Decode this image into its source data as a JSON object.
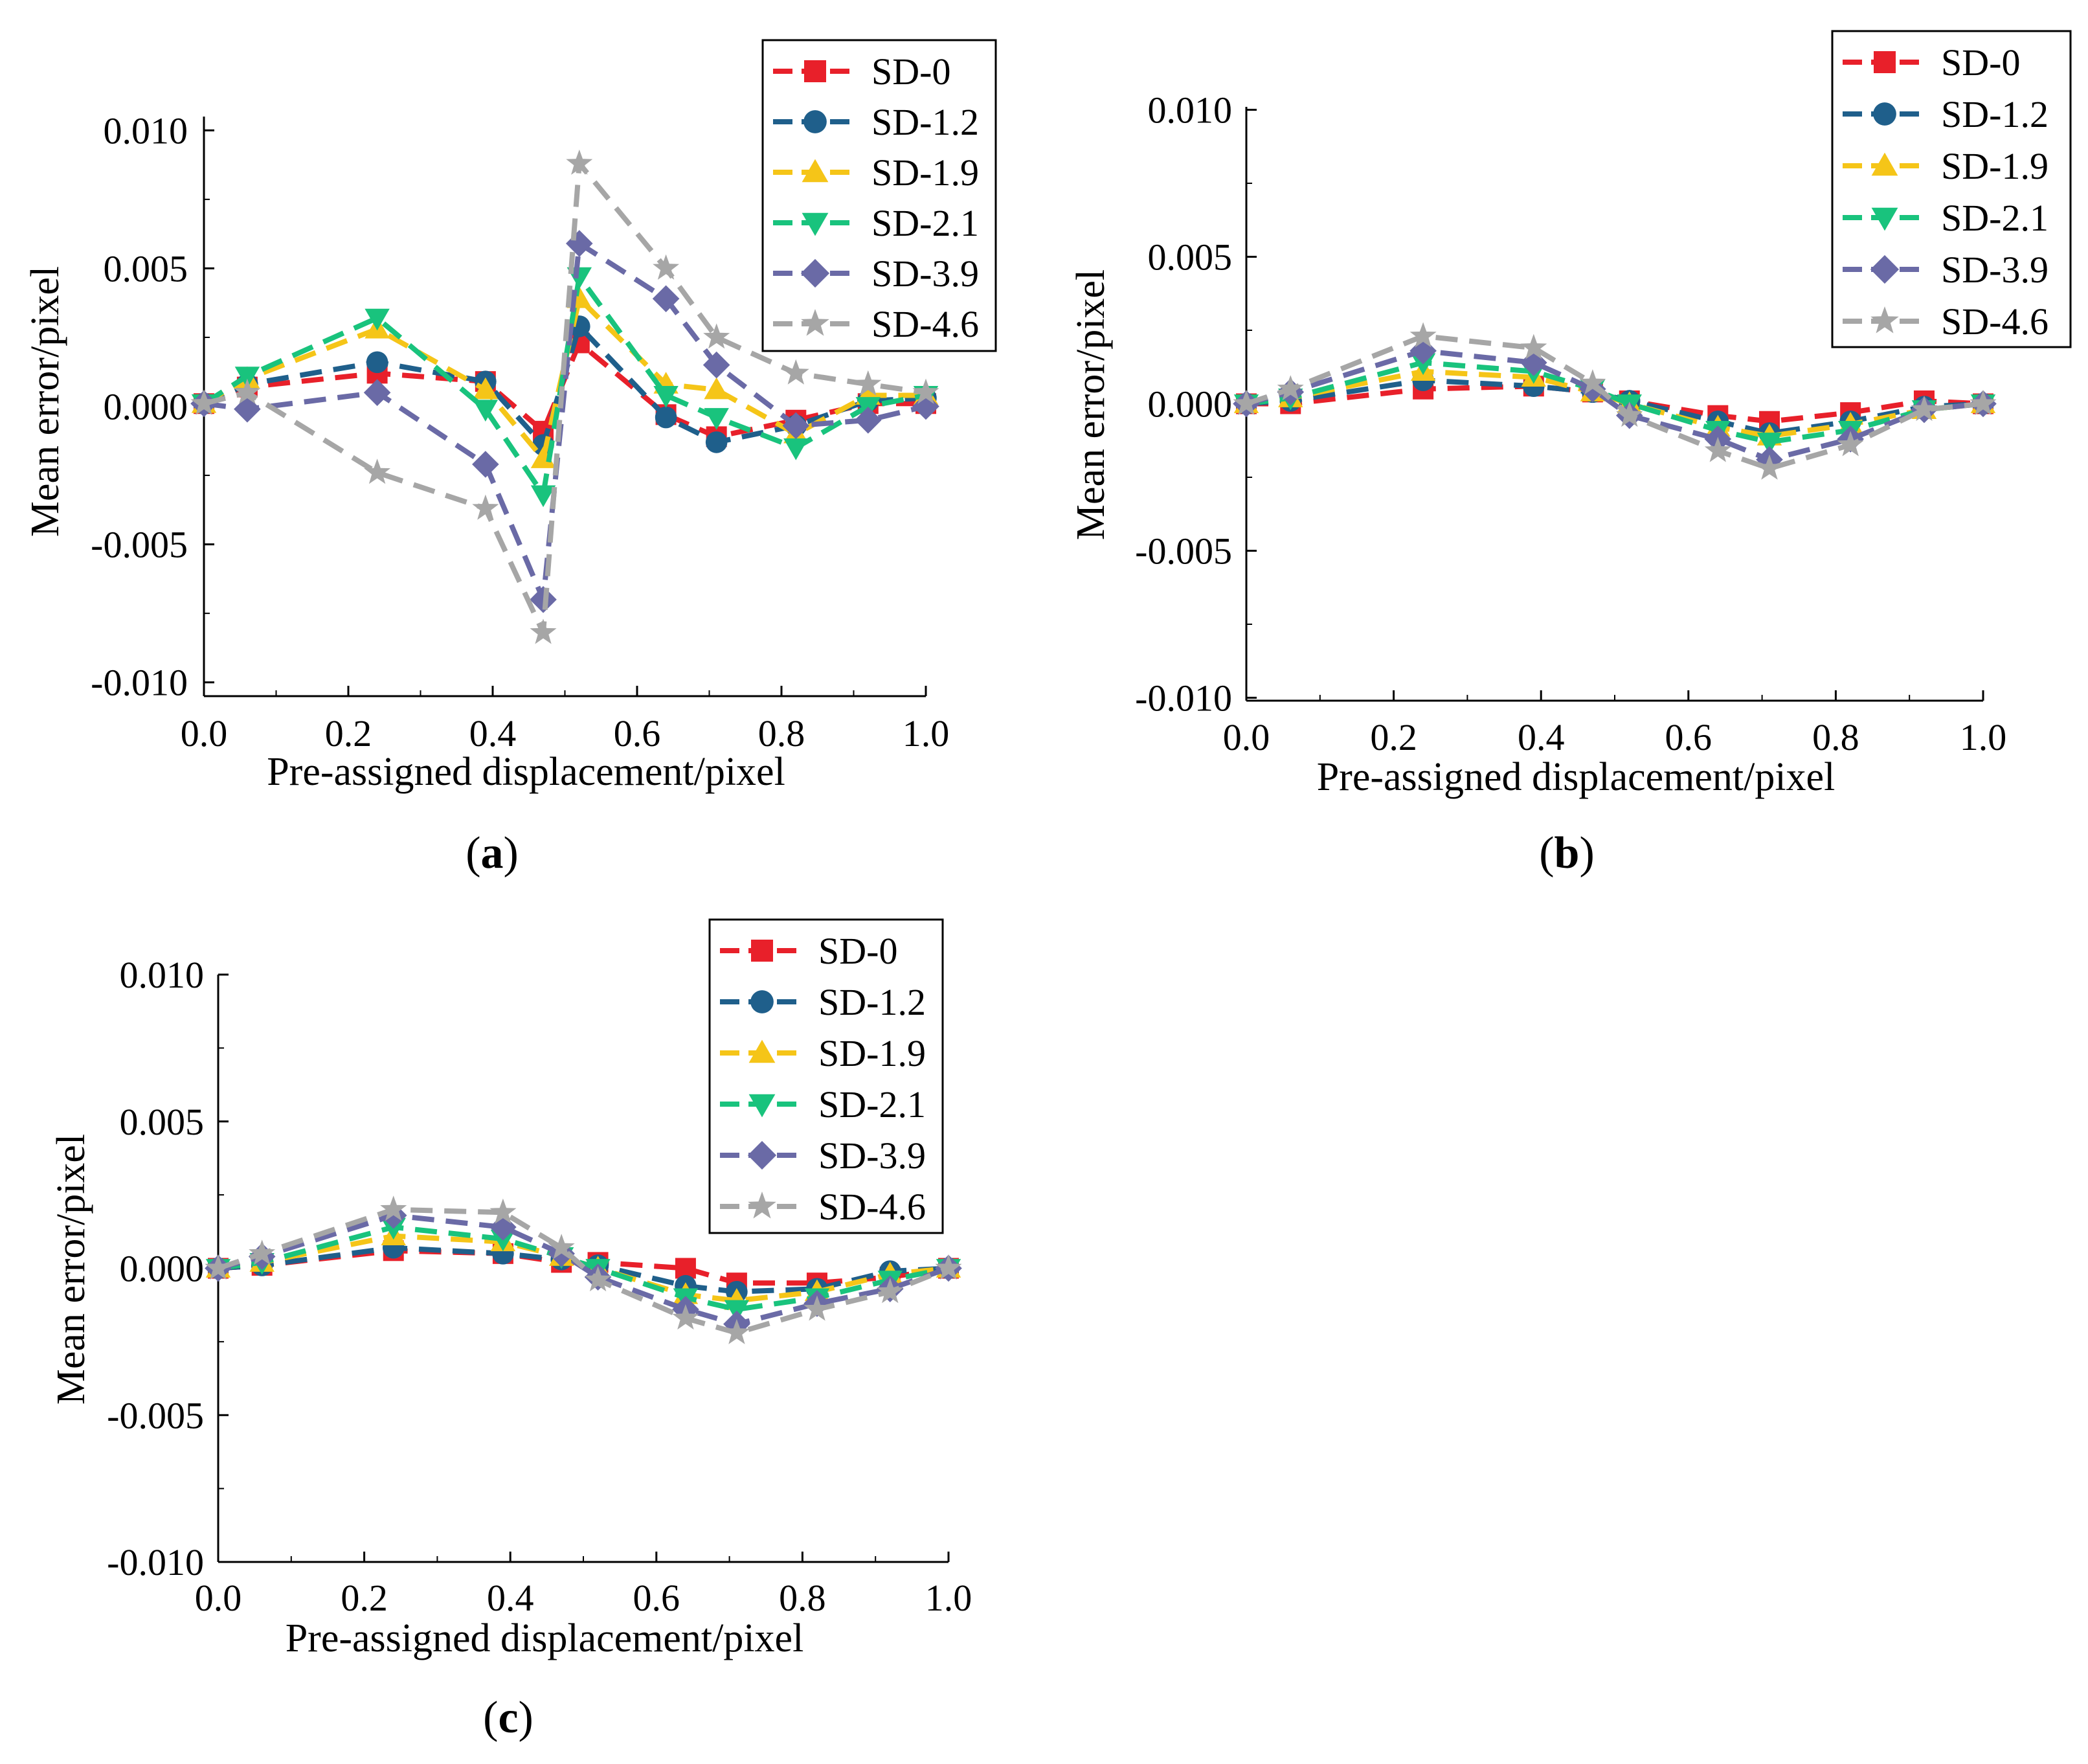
{
  "figure": {
    "panels": [
      "a",
      "b",
      "c"
    ]
  },
  "chart_data": [
    {
      "panel": "a",
      "caption": "(a)",
      "type": "line",
      "xlabel": "Pre-assigned displacement/pixel",
      "ylabel": "Mean error/pixel",
      "xlim": [
        0.0,
        1.0
      ],
      "ylim": [
        -0.0105,
        0.0105
      ],
      "xticks": [
        "0.0",
        "0.2",
        "0.4",
        "0.6",
        "0.8",
        "1.0"
      ],
      "xtick_values": [
        0.0,
        0.2,
        0.4,
        0.6,
        0.8,
        1.0
      ],
      "yticks": [
        "0.010",
        "0.005",
        "0.000",
        "-0.005",
        "-0.010"
      ],
      "ytick_values": [
        0.01,
        0.005,
        0.0,
        -0.005,
        -0.01
      ],
      "grid": false,
      "legend_position": "top-right",
      "x": [
        0.0,
        0.06,
        0.24,
        0.39,
        0.47,
        0.52,
        0.64,
        0.71,
        0.82,
        0.92,
        1.0
      ],
      "series": [
        {
          "name": "SD-0",
          "values": [
            0.0001,
            0.0007,
            0.0012,
            0.0009,
            -0.0009,
            0.0023,
            -0.0003,
            -0.0011,
            -0.0005,
            0.0001,
            0.0001
          ]
        },
        {
          "name": "SD-1.2",
          "values": [
            0.0001,
            0.0008,
            0.0016,
            0.0009,
            -0.0014,
            0.0029,
            -0.0004,
            -0.0013,
            -0.0007,
            0.0002,
            0.0003
          ]
        },
        {
          "name": "SD-1.9",
          "values": [
            0.0001,
            0.001,
            0.0028,
            0.0006,
            -0.0019,
            0.0039,
            0.0008,
            0.0006,
            -0.001,
            0.0004,
            0.0004
          ]
        },
        {
          "name": "SD-2.1",
          "values": [
            0.0001,
            0.0011,
            0.0032,
            -0.0001,
            -0.0032,
            0.0047,
            0.0004,
            -0.0004,
            -0.0015,
            0.0,
            0.0004
          ]
        },
        {
          "name": "SD-3.9",
          "values": [
            0.0001,
            -0.0001,
            0.0005,
            -0.0021,
            -0.007,
            0.0059,
            0.0039,
            0.0015,
            -0.0007,
            -0.0005,
            0.0
          ]
        },
        {
          "name": "SD-4.6",
          "values": [
            0.0001,
            0.0005,
            -0.0024,
            -0.0037,
            -0.0082,
            0.0088,
            0.005,
            0.0025,
            0.0012,
            0.0008,
            0.0005
          ]
        }
      ]
    },
    {
      "panel": "b",
      "caption": "(b)",
      "type": "line",
      "xlabel": "Pre-assigned displacement/pixel",
      "ylabel": "Mean error/pixel",
      "xlim": [
        0.0,
        1.0
      ],
      "ylim": [
        -0.0101,
        0.0101
      ],
      "xticks": [
        "0.0",
        "0.2",
        "0.4",
        "0.6",
        "0.8",
        "1.0"
      ],
      "xtick_values": [
        0.0,
        0.2,
        0.4,
        0.6,
        0.8,
        1.0
      ],
      "yticks": [
        "0.010",
        "0.005",
        "0.000",
        "-0.005",
        "-0.010"
      ],
      "ytick_values": [
        0.01,
        0.005,
        0.0,
        -0.005,
        -0.01
      ],
      "grid": false,
      "legend_position": "top-right",
      "x": [
        0.0,
        0.06,
        0.24,
        0.39,
        0.47,
        0.52,
        0.64,
        0.71,
        0.82,
        0.92,
        1.0
      ],
      "series": [
        {
          "name": "SD-0",
          "values": [
            0.0,
            0.0,
            0.0005,
            0.0006,
            0.0004,
            0.0001,
            -0.0004,
            -0.0006,
            -0.0003,
            0.0001,
            0.0
          ]
        },
        {
          "name": "SD-1.2",
          "values": [
            0.0,
            0.0001,
            0.0008,
            0.0006,
            0.0004,
            0.0001,
            -0.0006,
            -0.001,
            -0.0006,
            -0.0001,
            0.0
          ]
        },
        {
          "name": "SD-1.9",
          "values": [
            0.0,
            0.0002,
            0.0011,
            0.0009,
            0.0004,
            0.0,
            -0.0008,
            -0.0011,
            -0.0007,
            -0.0002,
            0.0
          ]
        },
        {
          "name": "SD-2.1",
          "values": [
            0.0,
            0.0002,
            0.0014,
            0.0011,
            0.0005,
            0.0,
            -0.0009,
            -0.0013,
            -0.0009,
            -0.0002,
            0.0
          ]
        },
        {
          "name": "SD-3.9",
          "values": [
            0.0,
            0.0004,
            0.0018,
            0.0014,
            0.0005,
            -0.0004,
            -0.0012,
            -0.0019,
            -0.0012,
            -0.0002,
            0.0
          ]
        },
        {
          "name": "SD-4.6",
          "values": [
            0.0,
            0.0005,
            0.0023,
            0.0019,
            0.0007,
            -0.0004,
            -0.0016,
            -0.0022,
            -0.0014,
            -0.0002,
            0.0
          ]
        }
      ]
    },
    {
      "panel": "c",
      "caption": "(c)",
      "type": "line",
      "xlabel": "Pre-assigned displacement/pixel",
      "ylabel": "Mean error/pixel",
      "xlim": [
        0.0,
        1.0
      ],
      "ylim": [
        -0.01,
        0.01
      ],
      "xticks": [
        "0.0",
        "0.2",
        "0.4",
        "0.6",
        "0.8",
        "1.0"
      ],
      "xtick_values": [
        0.0,
        0.2,
        0.4,
        0.6,
        0.8,
        1.0
      ],
      "yticks": [
        "0.010",
        "0.005",
        "0.000",
        "-0.005",
        "-0.010"
      ],
      "ytick_values": [
        0.01,
        0.005,
        0.0,
        -0.005,
        -0.01
      ],
      "grid": false,
      "legend_position": "top-right",
      "x": [
        0.0,
        0.06,
        0.24,
        0.39,
        0.47,
        0.52,
        0.64,
        0.71,
        0.82,
        0.92,
        1.0
      ],
      "series": [
        {
          "name": "SD-0",
          "values": [
            0.0,
            0.0001,
            0.0006,
            0.0005,
            0.0002,
            0.0002,
            0.0,
            -0.0005,
            -0.0005,
            -0.0003,
            0.0
          ]
        },
        {
          "name": "SD-1.2",
          "values": [
            0.0,
            0.0001,
            0.0007,
            0.0005,
            0.0003,
            0.0001,
            -0.0006,
            -0.0008,
            -0.0007,
            -0.0001,
            0.0
          ]
        },
        {
          "name": "SD-1.9",
          "values": [
            0.0,
            0.0002,
            0.0011,
            0.0009,
            0.0004,
            0.0,
            -0.0009,
            -0.0011,
            -0.0008,
            -0.0002,
            0.0
          ]
        },
        {
          "name": "SD-2.1",
          "values": [
            0.0,
            0.0002,
            0.0014,
            0.001,
            0.0004,
            0.0,
            -0.001,
            -0.0014,
            -0.001,
            -0.0004,
            0.0
          ]
        },
        {
          "name": "SD-3.9",
          "values": [
            0.0,
            0.0004,
            0.0018,
            0.0014,
            0.0005,
            -0.0003,
            -0.0014,
            -0.0019,
            -0.0012,
            -0.0007,
            0.0
          ]
        },
        {
          "name": "SD-4.6",
          "values": [
            0.0,
            0.0005,
            0.002,
            0.0019,
            0.0007,
            -0.0004,
            -0.0017,
            -0.0022,
            -0.0014,
            -0.0008,
            0.0
          ]
        }
      ]
    }
  ],
  "series_styles": [
    {
      "name": "SD-0",
      "color": "#e8202a",
      "marker": "square"
    },
    {
      "name": "SD-1.2",
      "color": "#1f5f8b",
      "marker": "circle"
    },
    {
      "name": "SD-1.9",
      "color": "#f5c518",
      "marker": "triangle-up"
    },
    {
      "name": "SD-2.1",
      "color": "#19c37d",
      "marker": "triangle-down"
    },
    {
      "name": "SD-3.9",
      "color": "#6a6aa6",
      "marker": "diamond"
    },
    {
      "name": "SD-4.6",
      "color": "#a6a6a6",
      "marker": "star"
    }
  ]
}
